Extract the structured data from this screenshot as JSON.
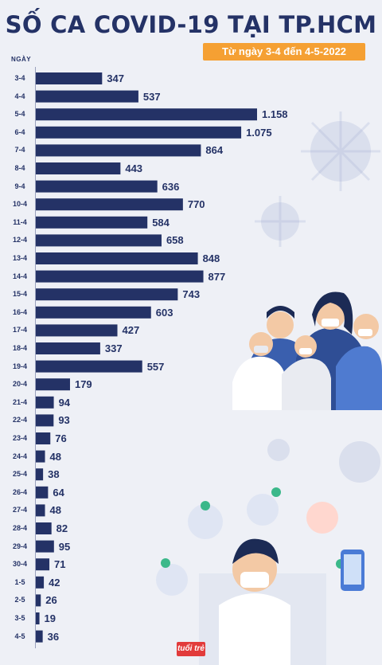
{
  "title": "SỐ CA COVID-19 TẠI TP.HCM",
  "subtitle": "Từ ngày 3-4 đến 4-5-2022",
  "brand": "tuổi trẻ",
  "colors": {
    "bar": "#243266",
    "accent": "#f5a033",
    "background": "#eef0f6"
  },
  "chart_data": {
    "type": "bar",
    "orientation": "horizontal",
    "title": "SỐ CA COVID-19 TẠI TP.HCM",
    "subtitle": "Từ ngày 3-4 đến 4-5-2022",
    "ylabel": "NGÀY",
    "categories": [
      "3-4",
      "4-4",
      "5-4",
      "6-4",
      "7-4",
      "8-4",
      "9-4",
      "10-4",
      "11-4",
      "12-4",
      "13-4",
      "14-4",
      "15-4",
      "16-4",
      "17-4",
      "18-4",
      "19-4",
      "20-4",
      "21-4",
      "22-4",
      "23-4",
      "24-4",
      "25-4",
      "26-4",
      "27-4",
      "28-4",
      "29-4",
      "30-4",
      "1-5",
      "2-5",
      "3-5",
      "4-5"
    ],
    "values": [
      347,
      537,
      1158,
      1075,
      864,
      443,
      636,
      770,
      584,
      658,
      848,
      877,
      743,
      603,
      427,
      337,
      557,
      179,
      94,
      93,
      76,
      48,
      38,
      64,
      48,
      82,
      95,
      71,
      42,
      26,
      19,
      36
    ],
    "value_labels": [
      "347",
      "537",
      "1.158",
      "1.075",
      "864",
      "443",
      "636",
      "770",
      "584",
      "658",
      "848",
      "877",
      "743",
      "603",
      "427",
      "337",
      "557",
      "179",
      "94",
      "93",
      "76",
      "48",
      "38",
      "64",
      "48",
      "82",
      "95",
      "71",
      "42",
      "26",
      "19",
      "36"
    ],
    "xlim": [
      0,
      1158
    ],
    "grid": false,
    "legend": "none"
  }
}
